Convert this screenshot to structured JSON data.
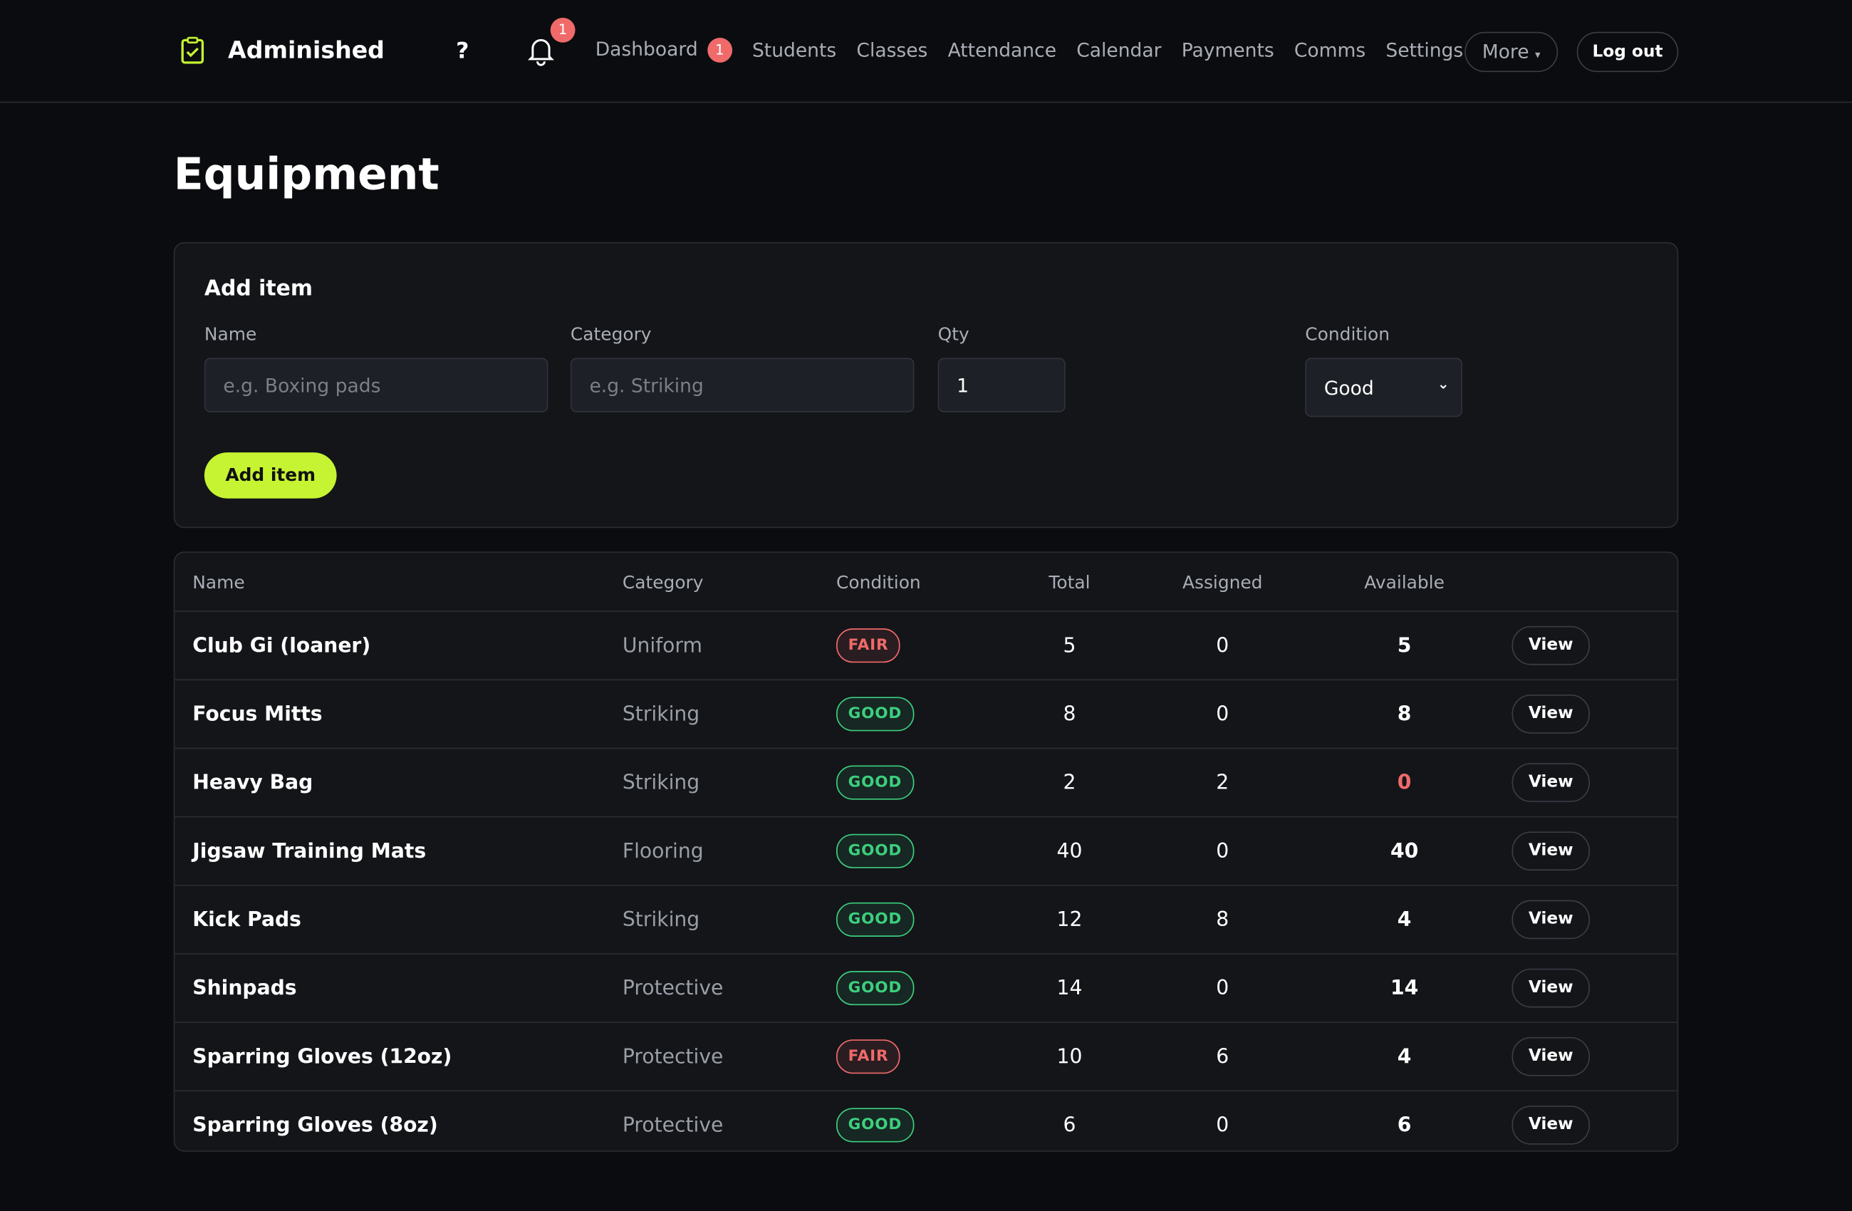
{
  "nav": {
    "brand": "Adminished",
    "help": "?",
    "notification_count": 1,
    "links": [
      "Dashboard",
      "Students",
      "Classes",
      "Attendance",
      "Calendar",
      "Payments",
      "Comms",
      "Settings"
    ],
    "dashboard_badge": 1,
    "more": "More",
    "logout": "Log out"
  },
  "page": {
    "title": "Equipment"
  },
  "form": {
    "title": "Add item",
    "fields": [
      {
        "label": "Name",
        "placeholder": "e.g. Boxing pads"
      },
      {
        "label": "Category",
        "placeholder": "e.g. Striking"
      },
      {
        "label": "Qty",
        "value": "1"
      },
      {
        "label": "Condition",
        "value": "Good"
      }
    ],
    "submit": "Add item"
  },
  "table": {
    "headers": [
      "Name",
      "Category",
      "Condition",
      "Total",
      "Assigned",
      "Available"
    ],
    "rows": [
      {
        "name": "Club Gi (loaner)",
        "category": "Uniform",
        "condition": "FAIR",
        "condition_color": "#f06a6a",
        "total": 5,
        "assigned": 0,
        "available": 5,
        "action": "View"
      },
      {
        "name": "Focus Mitts",
        "category": "Striking",
        "condition": "GOOD",
        "condition_color": "#3ccf7e",
        "total": 8,
        "assigned": 0,
        "available": 8,
        "action": "View"
      },
      {
        "name": "Heavy Bag",
        "category": "Striking",
        "condition": "GOOD",
        "condition_color": "#3ccf7e",
        "total": 2,
        "assigned": 2,
        "available": 0,
        "action": "View"
      },
      {
        "name": "Jigsaw Training Mats",
        "category": "Flooring",
        "condition": "GOOD",
        "condition_color": "#3ccf7e",
        "total": 40,
        "assigned": 0,
        "available": 40,
        "action": "View"
      },
      {
        "name": "Kick Pads",
        "category": "Striking",
        "condition": "GOOD",
        "condition_color": "#3ccf7e",
        "total": 12,
        "assigned": 8,
        "available": 4,
        "action": "View"
      },
      {
        "name": "Shinpads",
        "category": "Protective",
        "condition": "GOOD",
        "condition_color": "#3ccf7e",
        "total": 14,
        "assigned": 0,
        "available": 14,
        "action": "View"
      },
      {
        "name": "Sparring Gloves (12oz)",
        "category": "Protective",
        "condition": "FAIR",
        "condition_color": "#f06a6a",
        "total": 10,
        "assigned": 6,
        "available": 4,
        "action": "View"
      },
      {
        "name": "Sparring Gloves (8oz)",
        "category": "Protective",
        "condition": "GOOD",
        "condition_color": "#3ccf7e",
        "total": 6,
        "assigned": 0,
        "available": 6,
        "action": "View"
      }
    ]
  }
}
